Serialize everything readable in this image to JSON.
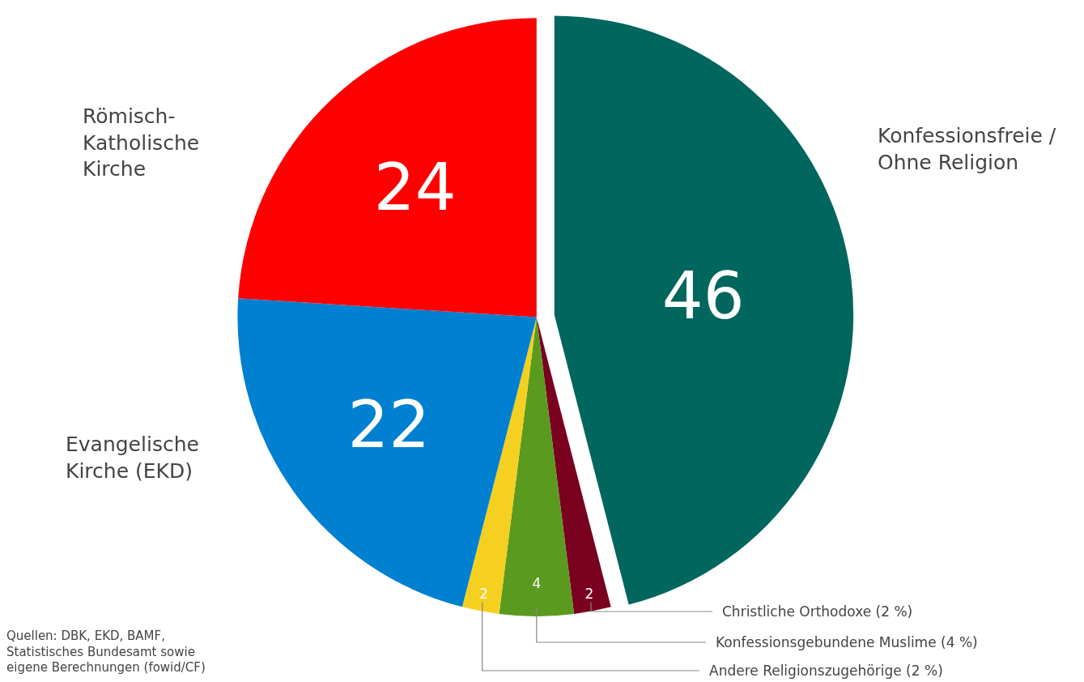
{
  "chart_data": {
    "type": "pie",
    "categories": [
      "Konfessionsfreie / Ohne Religion",
      "Christliche Orthodoxe (2 %)",
      "Konfessionsgebundene Muslime (4 %)",
      "Andere Religionszugehörige (2 %)",
      "Evangelische Kirche (EKD)",
      "Römisch-Katholische Kirche"
    ],
    "values": [
      46,
      2,
      4,
      2,
      22,
      24
    ],
    "colors": [
      "#00665e",
      "#7a0020",
      "#5a9a1e",
      "#f5d020",
      "#0080d0",
      "#ff0000"
    ],
    "data_labels": true,
    "legend": false,
    "annotations": [
      "Quellen: DBK, EKD, BAMF,\nStatistisches Bundesamt sowie\neigene Berechnungen (fowid/CF)"
    ]
  }
}
